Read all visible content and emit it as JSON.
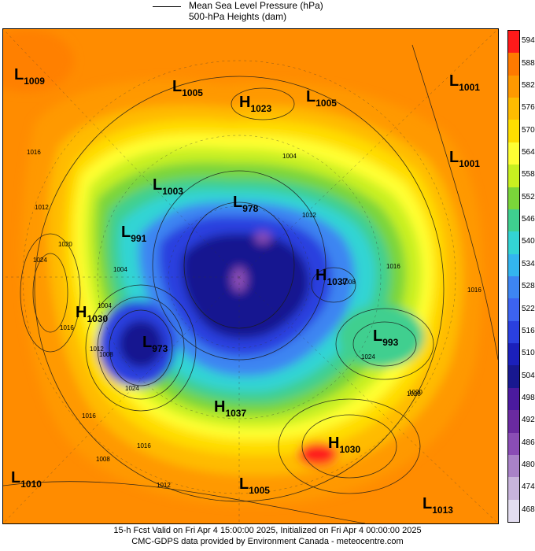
{
  "legend": {
    "line1": "Mean Sea Level Pressure (hPa)",
    "line2": "500-hPa Heights (dam)"
  },
  "colorbar": {
    "levels": [
      "594",
      "588",
      "582",
      "576",
      "570",
      "564",
      "558",
      "552",
      "546",
      "540",
      "534",
      "528",
      "522",
      "516",
      "510",
      "504",
      "498",
      "492",
      "486",
      "480",
      "474",
      "468"
    ],
    "colors": [
      "#ff1a1a",
      "#ff7a00",
      "#ff9900",
      "#ffbb00",
      "#ffdd00",
      "#ffff33",
      "#c8f020",
      "#7ad53a",
      "#3fcf8f",
      "#33d4d4",
      "#33b5ef",
      "#3d85f2",
      "#3c63f0",
      "#2a40df",
      "#1b20bb",
      "#181890",
      "#4b1a9e",
      "#6a2aa0",
      "#8a4db5",
      "#a982c8",
      "#c8b4dc",
      "#e3ddf0"
    ]
  },
  "centers": [
    {
      "type": "L",
      "value": "1009"
    },
    {
      "type": "L",
      "value": "1005"
    },
    {
      "type": "H",
      "value": "1023"
    },
    {
      "type": "L",
      "value": "1005"
    },
    {
      "type": "L",
      "value": "1001"
    },
    {
      "type": "L",
      "value": "1001"
    },
    {
      "type": "L",
      "value": "1003"
    },
    {
      "type": "L",
      "value": "978"
    },
    {
      "type": "L",
      "value": "991"
    },
    {
      "type": "H",
      "value": "1037"
    },
    {
      "type": "H",
      "value": "1030"
    },
    {
      "type": "L",
      "value": "973"
    },
    {
      "type": "L",
      "value": "993"
    },
    {
      "type": "H",
      "value": "1037"
    },
    {
      "type": "H",
      "value": "1030"
    },
    {
      "type": "L",
      "value": "1010"
    },
    {
      "type": "L",
      "value": "1005"
    },
    {
      "type": "L",
      "value": "1013"
    }
  ],
  "isobar_labels": [
    "1016",
    "1012",
    "1020",
    "1024",
    "1016",
    "1012",
    "1008",
    "1004",
    "1004",
    "1008",
    "1024",
    "1028",
    "1016",
    "1020",
    "1016",
    "1024",
    "1016",
    "1012",
    "1008",
    "1004",
    "1012",
    "1016"
  ],
  "footer": {
    "line1": "15-h Fcst Valid on Fri Apr  4 15:00:00 2025, Initialized on Fri Apr  4 00:00:00 2025",
    "line2": "CMC-GDPS data provided by Environment Canada - meteocentre.com"
  }
}
